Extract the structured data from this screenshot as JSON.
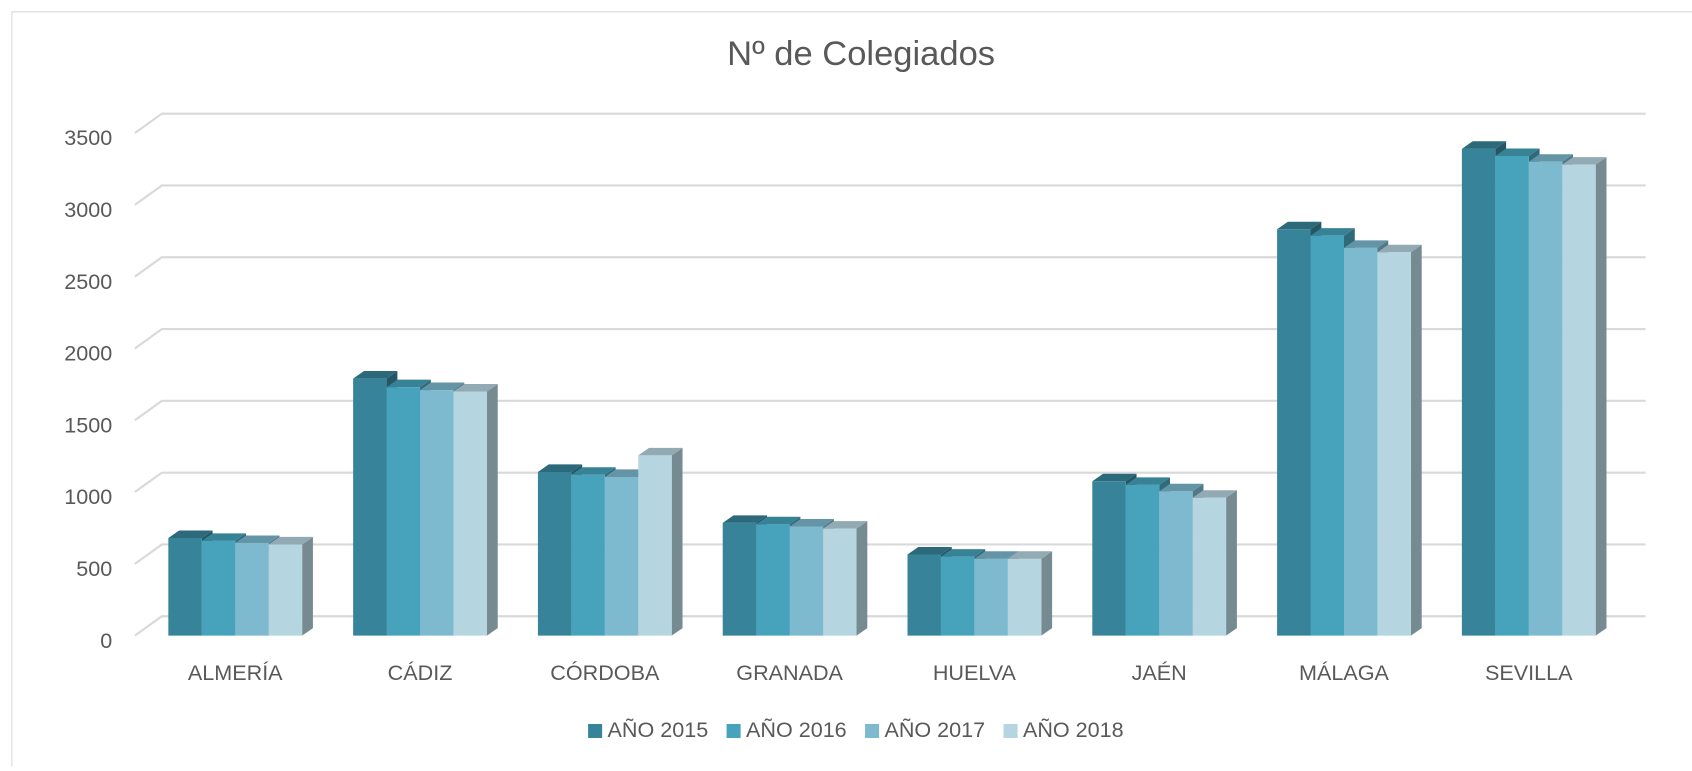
{
  "chart_data": {
    "type": "bar3d",
    "title": "Nº de Colegiados",
    "categories": [
      "ALMERÍA",
      "CÁDIZ",
      "CÓRDOBA",
      "GRANADA",
      "HUELVA",
      "JAÉN",
      "MÁLAGA",
      "SEVILLA"
    ],
    "series": [
      {
        "name": "AÑO 2015",
        "color": "#37849a",
        "values": [
          680,
          1790,
          1140,
          785,
          565,
          1075,
          2830,
          3390
        ]
      },
      {
        "name": "AÑO 2016",
        "color": "#46a3bb",
        "values": [
          660,
          1730,
          1120,
          775,
          550,
          1050,
          2785,
          3340
        ]
      },
      {
        "name": "AÑO 2017",
        "color": "#7dbacf",
        "values": [
          645,
          1710,
          1105,
          760,
          535,
          1005,
          2700,
          3300
        ]
      },
      {
        "name": "AÑO 2018",
        "color": "#b5d5e0",
        "values": [
          635,
          1700,
          1255,
          745,
          535,
          960,
          2670,
          3280
        ]
      }
    ],
    "ylim": [
      0,
      3500
    ],
    "yticks": [
      0,
      500,
      1000,
      1500,
      2000,
      2500,
      3000,
      3500
    ],
    "grid": true,
    "legend": "bottom"
  }
}
